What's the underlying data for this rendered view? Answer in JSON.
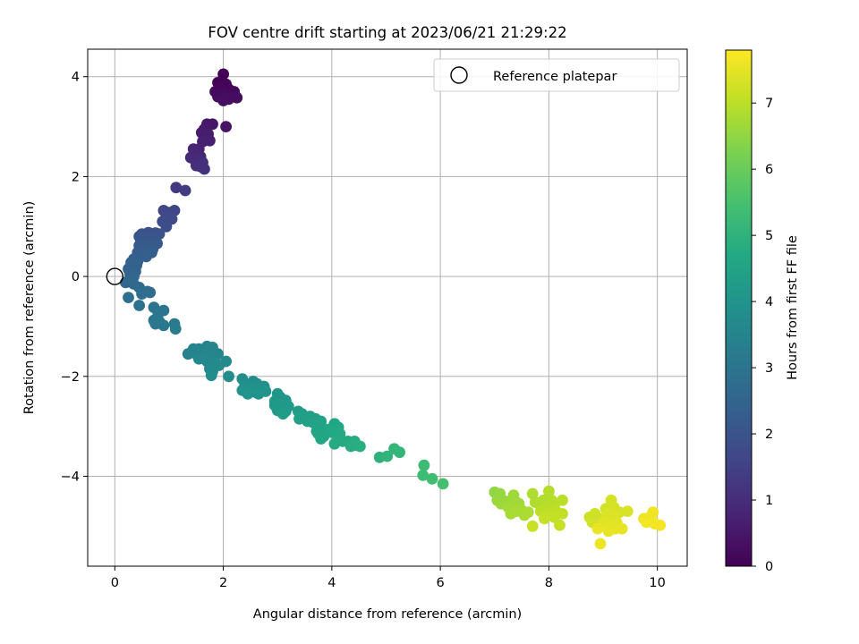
{
  "chart_data": {
    "type": "scatter",
    "title": "FOV centre drift starting at 2023/06/21 21:29:22",
    "xlabel": "Angular distance from reference (arcmin)",
    "ylabel": "Rotation from reference (arcmin)",
    "xlim": [
      -0.5,
      10.55
    ],
    "ylim": [
      -5.8,
      4.55
    ],
    "xticks": [
      0,
      2,
      4,
      6,
      8,
      10
    ],
    "yticks": [
      -4,
      -2,
      0,
      2,
      4
    ],
    "grid": true,
    "legend": {
      "position": "top-right",
      "entries": [
        "Reference platepar"
      ]
    },
    "reference_point": {
      "x": 0,
      "y": 0
    },
    "colorbar": {
      "label": "Hours from first FF file",
      "colormap": "viridis",
      "range": [
        0,
        7.8
      ],
      "ticks": [
        0,
        1,
        2,
        3,
        4,
        5,
        6,
        7
      ]
    },
    "series": [
      {
        "points": [
          [
            2.0,
            4.05,
            0.02
          ],
          [
            1.9,
            3.88,
            0.05
          ],
          [
            2.05,
            3.85,
            0.08
          ],
          [
            1.95,
            3.78,
            0.1
          ],
          [
            2.1,
            3.75,
            0.12
          ],
          [
            1.85,
            3.7,
            0.15
          ],
          [
            2.2,
            3.7,
            0.17
          ],
          [
            2.0,
            3.68,
            0.19
          ],
          [
            1.92,
            3.62,
            0.2
          ],
          [
            2.15,
            3.6,
            0.22
          ],
          [
            1.9,
            3.6,
            0.24
          ],
          [
            2.05,
            3.58,
            0.25
          ],
          [
            2.25,
            3.58,
            0.26
          ],
          [
            2.1,
            3.55,
            0.28
          ],
          [
            2.0,
            3.52,
            0.3
          ],
          [
            2.05,
            3.0,
            0.4
          ],
          [
            1.8,
            3.05,
            0.45
          ],
          [
            1.7,
            3.05,
            0.5
          ],
          [
            1.65,
            2.95,
            0.55
          ],
          [
            1.6,
            2.88,
            0.6
          ],
          [
            1.72,
            2.85,
            0.62
          ],
          [
            1.75,
            2.72,
            0.65
          ],
          [
            1.62,
            2.7,
            0.7
          ],
          [
            1.55,
            2.55,
            0.75
          ],
          [
            1.45,
            2.55,
            0.8
          ],
          [
            1.5,
            2.45,
            0.85
          ],
          [
            1.58,
            2.4,
            0.88
          ],
          [
            1.4,
            2.38,
            0.9
          ],
          [
            1.48,
            2.32,
            0.93
          ],
          [
            1.55,
            2.3,
            0.95
          ],
          [
            1.62,
            2.28,
            1.0
          ],
          [
            1.5,
            2.22,
            1.02
          ],
          [
            1.58,
            2.2,
            1.05
          ],
          [
            1.65,
            2.15,
            1.08
          ],
          [
            1.13,
            1.78,
            1.3
          ],
          [
            1.3,
            1.72,
            1.4
          ],
          [
            0.9,
            1.32,
            1.55
          ],
          [
            1.1,
            1.32,
            1.6
          ],
          [
            1.0,
            1.28,
            1.62
          ],
          [
            0.95,
            1.2,
            1.68
          ],
          [
            1.05,
            1.15,
            1.72
          ],
          [
            0.88,
            1.1,
            1.78
          ],
          [
            0.95,
            1.0,
            1.82
          ],
          [
            0.62,
            0.88,
            1.9
          ],
          [
            0.75,
            0.87,
            1.92
          ],
          [
            0.82,
            0.85,
            1.95
          ],
          [
            0.5,
            0.85,
            1.97
          ],
          [
            0.68,
            0.82,
            2.0
          ],
          [
            0.58,
            0.8,
            2.02
          ],
          [
            0.45,
            0.8,
            2.04
          ],
          [
            0.72,
            0.78,
            2.06
          ],
          [
            0.62,
            0.75,
            2.08
          ],
          [
            0.48,
            0.72,
            2.1
          ],
          [
            0.55,
            0.7,
            2.12
          ],
          [
            0.65,
            0.68,
            2.14
          ],
          [
            0.78,
            0.66,
            2.16
          ],
          [
            0.45,
            0.62,
            2.18
          ],
          [
            0.62,
            0.6,
            2.2
          ],
          [
            0.5,
            0.58,
            2.22
          ],
          [
            0.7,
            0.55,
            2.24
          ],
          [
            0.55,
            0.52,
            2.26
          ],
          [
            0.42,
            0.48,
            2.28
          ],
          [
            0.68,
            0.48,
            2.3
          ],
          [
            0.5,
            0.44,
            2.32
          ],
          [
            0.58,
            0.4,
            2.34
          ],
          [
            0.35,
            0.35,
            2.36
          ],
          [
            0.42,
            0.3,
            2.38
          ],
          [
            0.3,
            0.28,
            2.4
          ],
          [
            0.4,
            0.22,
            2.42
          ],
          [
            0.32,
            0.18,
            2.44
          ],
          [
            0.25,
            0.15,
            2.46
          ],
          [
            0.38,
            0.1,
            2.48
          ],
          [
            0.28,
            0.05,
            2.5
          ],
          [
            0.35,
            0.0,
            2.55
          ],
          [
            0.2,
            -0.12,
            2.62
          ],
          [
            0.35,
            -0.15,
            2.65
          ],
          [
            0.45,
            -0.22,
            2.7
          ],
          [
            0.6,
            -0.3,
            2.75
          ],
          [
            0.65,
            -0.32,
            2.78
          ],
          [
            0.5,
            -0.35,
            2.8
          ],
          [
            0.25,
            -0.42,
            2.85
          ],
          [
            0.45,
            -0.58,
            2.9
          ],
          [
            0.72,
            -0.62,
            2.95
          ],
          [
            0.9,
            -0.68,
            3.0
          ],
          [
            0.8,
            -0.75,
            3.02
          ],
          [
            0.72,
            -0.88,
            3.05
          ],
          [
            0.82,
            -0.9,
            3.08
          ],
          [
            0.75,
            -0.95,
            3.1
          ],
          [
            0.9,
            -0.98,
            3.12
          ],
          [
            1.1,
            -0.95,
            3.15
          ],
          [
            1.12,
            -1.05,
            3.2
          ],
          [
            1.35,
            -1.55,
            3.4
          ],
          [
            1.45,
            -1.45,
            3.42
          ],
          [
            1.55,
            -1.45,
            3.44
          ],
          [
            1.7,
            -1.4,
            3.46
          ],
          [
            1.8,
            -1.42,
            3.48
          ],
          [
            1.5,
            -1.55,
            3.5
          ],
          [
            1.65,
            -1.55,
            3.52
          ],
          [
            1.9,
            -1.55,
            3.54
          ],
          [
            1.6,
            -1.62,
            3.56
          ],
          [
            1.75,
            -1.6,
            3.58
          ],
          [
            1.55,
            -1.65,
            3.6
          ],
          [
            1.7,
            -1.7,
            3.62
          ],
          [
            1.85,
            -1.72,
            3.64
          ],
          [
            2.05,
            -1.7,
            3.66
          ],
          [
            1.92,
            -1.78,
            3.68
          ],
          [
            1.75,
            -1.85,
            3.7
          ],
          [
            1.8,
            -1.9,
            3.72
          ],
          [
            1.78,
            -1.98,
            3.74
          ],
          [
            2.1,
            -2.0,
            3.76
          ],
          [
            2.35,
            -2.05,
            3.8
          ],
          [
            2.55,
            -2.1,
            3.82
          ],
          [
            2.4,
            -2.15,
            3.84
          ],
          [
            2.5,
            -2.2,
            3.86
          ],
          [
            2.62,
            -2.15,
            3.88
          ],
          [
            2.75,
            -2.2,
            3.9
          ],
          [
            2.35,
            -2.28,
            3.92
          ],
          [
            2.5,
            -2.25,
            3.94
          ],
          [
            2.6,
            -2.32,
            3.96
          ],
          [
            2.78,
            -2.3,
            3.98
          ],
          [
            2.45,
            -2.35,
            4.0
          ],
          [
            2.65,
            -2.35,
            4.02
          ],
          [
            3.0,
            -2.35,
            4.06
          ],
          [
            3.05,
            -2.42,
            4.08
          ],
          [
            2.95,
            -2.5,
            4.1
          ],
          [
            3.15,
            -2.48,
            4.12
          ],
          [
            3.1,
            -2.55,
            4.14
          ],
          [
            2.95,
            -2.58,
            4.16
          ],
          [
            3.05,
            -2.62,
            4.18
          ],
          [
            3.2,
            -2.6,
            4.2
          ],
          [
            3.0,
            -2.68,
            4.22
          ],
          [
            3.15,
            -2.7,
            4.24
          ],
          [
            3.1,
            -2.75,
            4.26
          ],
          [
            3.38,
            -2.7,
            4.3
          ],
          [
            3.45,
            -2.75,
            4.32
          ],
          [
            3.5,
            -2.8,
            4.34
          ],
          [
            3.6,
            -2.8,
            4.36
          ],
          [
            3.4,
            -2.85,
            4.38
          ],
          [
            3.55,
            -2.9,
            4.4
          ],
          [
            3.7,
            -2.85,
            4.42
          ],
          [
            3.65,
            -2.92,
            4.44
          ],
          [
            3.8,
            -2.9,
            4.46
          ],
          [
            3.75,
            -3.0,
            4.48
          ],
          [
            3.85,
            -3.05,
            4.5
          ],
          [
            3.72,
            -3.1,
            4.52
          ],
          [
            3.9,
            -3.1,
            4.54
          ],
          [
            3.75,
            -3.15,
            4.56
          ],
          [
            3.85,
            -3.2,
            4.58
          ],
          [
            3.8,
            -3.25,
            4.6
          ],
          [
            4.05,
            -2.95,
            4.62
          ],
          [
            3.98,
            -3.05,
            4.64
          ],
          [
            4.12,
            -3.02,
            4.66
          ],
          [
            4.0,
            -3.12,
            4.68
          ],
          [
            4.15,
            -3.15,
            4.7
          ],
          [
            4.1,
            -3.25,
            4.72
          ],
          [
            4.2,
            -3.3,
            4.74
          ],
          [
            4.05,
            -3.35,
            4.76
          ],
          [
            4.3,
            -3.3,
            4.78
          ],
          [
            4.42,
            -3.3,
            4.8
          ],
          [
            4.35,
            -3.4,
            4.82
          ],
          [
            4.45,
            -3.38,
            4.84
          ],
          [
            4.52,
            -3.4,
            4.86
          ],
          [
            4.88,
            -3.62,
            5.0
          ],
          [
            5.02,
            -3.6,
            5.05
          ],
          [
            5.15,
            -3.45,
            5.1
          ],
          [
            5.25,
            -3.52,
            5.12
          ],
          [
            5.7,
            -3.78,
            5.3
          ],
          [
            5.68,
            -3.98,
            5.35
          ],
          [
            5.85,
            -4.05,
            5.4
          ],
          [
            6.05,
            -4.15,
            5.45
          ],
          [
            7.0,
            -4.32,
            6.5
          ],
          [
            7.1,
            -4.35,
            6.55
          ],
          [
            7.05,
            -4.48,
            6.6
          ],
          [
            7.2,
            -4.5,
            6.62
          ],
          [
            7.12,
            -4.55,
            6.64
          ],
          [
            7.35,
            -4.38,
            6.66
          ],
          [
            7.38,
            -4.5,
            6.68
          ],
          [
            7.45,
            -4.55,
            6.7
          ],
          [
            7.25,
            -4.62,
            6.72
          ],
          [
            7.5,
            -4.68,
            6.74
          ],
          [
            7.3,
            -4.75,
            6.76
          ],
          [
            7.4,
            -4.7,
            6.78
          ],
          [
            7.55,
            -4.78,
            6.8
          ],
          [
            7.62,
            -4.72,
            6.82
          ],
          [
            7.7,
            -4.35,
            6.84
          ],
          [
            7.75,
            -4.52,
            6.86
          ],
          [
            7.85,
            -4.58,
            6.88
          ],
          [
            7.9,
            -4.48,
            6.9
          ],
          [
            8.0,
            -4.3,
            6.92
          ],
          [
            8.05,
            -4.48,
            6.94
          ],
          [
            7.95,
            -4.62,
            6.96
          ],
          [
            8.1,
            -4.6,
            6.98
          ],
          [
            8.25,
            -4.48,
            7.0
          ],
          [
            7.85,
            -4.7,
            7.02
          ],
          [
            8.0,
            -4.75,
            7.04
          ],
          [
            8.15,
            -4.72,
            7.06
          ],
          [
            8.1,
            -4.82,
            7.08
          ],
          [
            8.25,
            -4.75,
            7.1
          ],
          [
            7.92,
            -4.85,
            7.12
          ],
          [
            8.2,
            -4.98,
            7.14
          ],
          [
            7.7,
            -5.0,
            7.16
          ],
          [
            8.75,
            -4.82,
            7.2
          ],
          [
            8.85,
            -4.75,
            7.22
          ],
          [
            8.95,
            -4.85,
            7.24
          ],
          [
            8.8,
            -4.92,
            7.26
          ],
          [
            9.05,
            -4.65,
            7.28
          ],
          [
            9.15,
            -4.48,
            7.3
          ],
          [
            9.2,
            -4.62,
            7.32
          ],
          [
            9.3,
            -4.72,
            7.34
          ],
          [
            9.45,
            -4.7,
            7.36
          ],
          [
            9.08,
            -4.75,
            7.38
          ],
          [
            9.2,
            -4.8,
            7.4
          ],
          [
            9.12,
            -4.88,
            7.42
          ],
          [
            9.25,
            -4.92,
            7.44
          ],
          [
            9.02,
            -4.92,
            7.46
          ],
          [
            9.15,
            -5.0,
            7.48
          ],
          [
            9.22,
            -5.05,
            7.5
          ],
          [
            9.35,
            -5.05,
            7.52
          ],
          [
            9.1,
            -5.1,
            7.54
          ],
          [
            8.9,
            -5.05,
            7.56
          ],
          [
            8.95,
            -5.35,
            7.58
          ],
          [
            9.75,
            -4.85,
            7.6
          ],
          [
            9.88,
            -4.8,
            7.62
          ],
          [
            9.92,
            -4.72,
            7.64
          ],
          [
            9.8,
            -4.92,
            7.66
          ],
          [
            9.95,
            -4.95,
            7.68
          ],
          [
            10.05,
            -4.98,
            7.7
          ]
        ]
      }
    ]
  }
}
